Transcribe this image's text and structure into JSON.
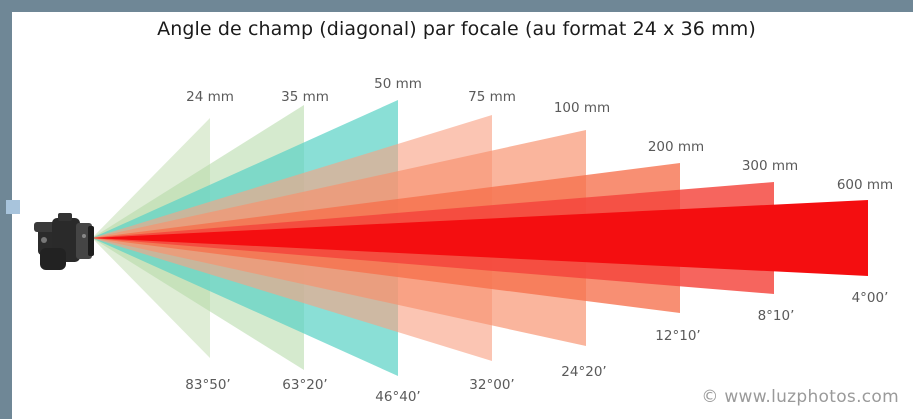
{
  "title": "Angle de champ (diagonal) par focale (au format 24 x 36 mm)",
  "credit": "© www.luzphotos.com",
  "focals": [
    {
      "focal": "24 mm",
      "angle": "83°50’",
      "color": "#c4dfb4"
    },
    {
      "focal": "35 mm",
      "angle": "63°20’",
      "color": "#b2d9a5"
    },
    {
      "focal": "50 mm",
      "angle": "46°40’",
      "color": "#5dd3c6"
    },
    {
      "focal": "75 mm",
      "angle": "32°00’",
      "color": "#f8a285"
    },
    {
      "focal": "100 mm",
      "angle": "24°20’",
      "color": "#f7926f"
    },
    {
      "focal": "200 mm",
      "angle": "12°10’",
      "color": "#f6704b"
    },
    {
      "focal": "300 mm",
      "angle": "8°10’",
      "color": "#f4433a"
    },
    {
      "focal": "600 mm",
      "angle": "4°00’",
      "color": "#f40e10"
    }
  ]
}
